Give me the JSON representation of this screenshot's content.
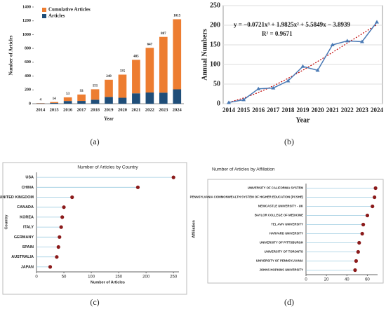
{
  "chart_data": [
    {
      "type": "bar",
      "panel_label": "(a)",
      "x_label": "Year",
      "y_label": "Number of Articles",
      "categories": [
        "2014",
        "2015",
        "2016",
        "2017",
        "2018",
        "2019",
        "2020",
        "2021",
        "2022",
        "2023",
        "2024"
      ],
      "series": [
        {
          "name": "Articles",
          "color": "#1f4e79",
          "values": [
            4,
            10,
            39,
            40,
            58,
            98,
            86,
            150,
            162,
            160,
            208
          ]
        },
        {
          "name": "Cumulative Articles",
          "color": "#ed7d31",
          "values": [
            4,
            14,
            53,
            93,
            151,
            249,
            335,
            485,
            647,
            807,
            1015
          ]
        }
      ],
      "ylim": [
        0,
        1400
      ],
      "yticks": [
        0,
        200,
        400,
        600,
        800,
        1000,
        1200,
        1400
      ],
      "legend": "top-left"
    },
    {
      "type": "line",
      "panel_label": "(b)",
      "x_label": "Year",
      "y_label": "Annual Numbers",
      "categories": [
        "2014",
        "2015",
        "2016",
        "2017",
        "2018",
        "2019",
        "2020",
        "2021",
        "2022",
        "2023",
        "2024"
      ],
      "series": [
        {
          "name": "Annual Numbers",
          "color": "#4a7ab5",
          "values": [
            3,
            10,
            38,
            40,
            58,
            95,
            85,
            150,
            160,
            158,
            208
          ]
        }
      ],
      "trendline": {
        "equation": "y = −0.0721x³ + 1.9825x² + 5.5849x − 3.8939",
        "r2": "R² = 0.9671",
        "coefficients": [
          -0.0721,
          1.9825,
          5.5849,
          -3.8939
        ],
        "color": "#c00000"
      },
      "ylim": [
        0,
        250
      ],
      "yticks": [
        0,
        50,
        100,
        150,
        200,
        250
      ],
      "grid": true
    },
    {
      "type": "lollipop",
      "panel_label": "(c)",
      "title": "Number of Articles by Country",
      "x_label": "Number of Articles",
      "y_label": "Country",
      "categories": [
        "USA",
        "CHINA",
        "UNITED KINGDOM",
        "CANADA",
        "KOREA",
        "ITALY",
        "GERMANY",
        "SPAIN",
        "AUSTRALIA",
        "JAPAN"
      ],
      "values": [
        250,
        185,
        65,
        50,
        47,
        45,
        42,
        40,
        37,
        25
      ],
      "color": "#8b1a1a",
      "xlim": [
        0,
        260
      ],
      "xticks": [
        0,
        50,
        100,
        150,
        200,
        250
      ]
    },
    {
      "type": "lollipop",
      "panel_label": "(d)",
      "title": "Number of Articles by Affiliation",
      "y_label": "Affiliation",
      "categories": [
        "UNIVERSITY OF CALIFORNIA SYSTEM",
        "PENNSYLVANIA COMMONWEALTH SYSTEM OF HIGHER EDUCATION (PCSHE)",
        "NEWCASTLE UNIVERSITY - UK",
        "BAYLOR COLLEGE OF MEDICINE",
        "TEL AVIV UNIVERSITY",
        "HARVARD UNIVERSITY",
        "UNIVERSITY OF PITTSBURGH",
        "UNIVERSITY OF TORONTO",
        "UNIVERSITY OF PENNSYLVANIA",
        "JOHNS HOPKINS UNIVERSITY"
      ],
      "values": [
        68,
        67,
        65,
        60,
        56,
        55,
        52,
        51,
        49,
        48
      ],
      "color": "#8b1a1a",
      "xlim": [
        0,
        70
      ],
      "xticks": [
        0,
        20,
        40,
        60
      ]
    }
  ]
}
